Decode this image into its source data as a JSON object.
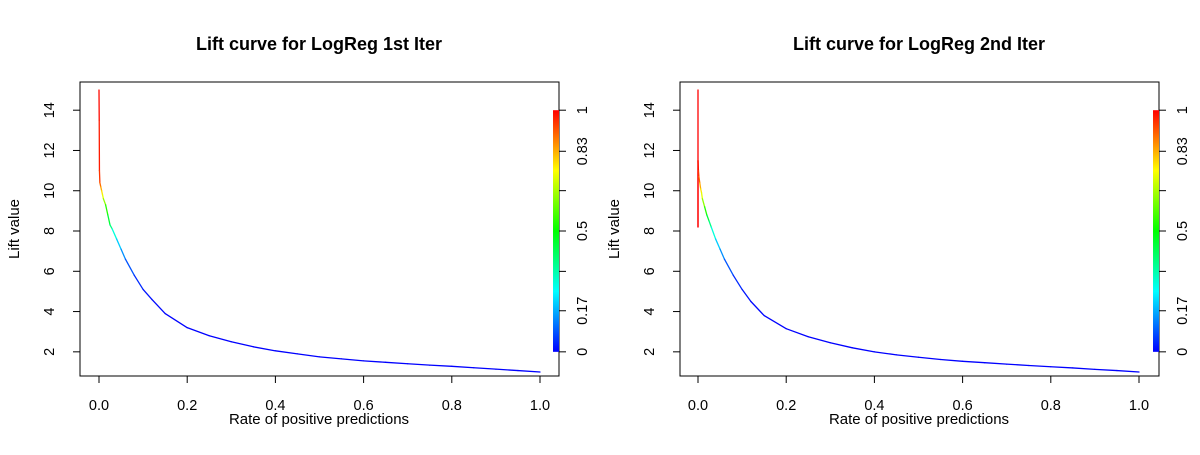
{
  "chart_data": [
    {
      "type": "line",
      "title": "Lift curve for LogReg 1st Iter",
      "xlabel": "Rate of positive predictions",
      "ylabel": "Lift value",
      "xlim": [
        0,
        1
      ],
      "ylim": [
        0.8,
        15.4
      ],
      "xticks": [
        "0.0",
        "0.2",
        "0.4",
        "0.6",
        "0.8",
        "1.0"
      ],
      "yticks": [
        "2",
        "4",
        "6",
        "8",
        "10",
        "12",
        "14"
      ],
      "colorbar_ticks": [
        "0",
        "0.17",
        "0.5",
        "0.83",
        "1"
      ],
      "colorbar_colormap": [
        "#0000ff",
        "#00ffff",
        "#00ff00",
        "#ffff00",
        "#ff0000"
      ],
      "grid": false,
      "series": [
        {
          "x": [
            0.0,
            0.0005,
            0.001,
            0.002,
            0.004,
            0.006,
            0.008,
            0.01,
            0.015,
            0.02,
            0.025,
            0.03,
            0.04,
            0.05,
            0.06,
            0.08,
            0.1,
            0.12,
            0.15,
            0.2,
            0.25,
            0.3,
            0.35,
            0.4,
            0.45,
            0.5,
            0.55,
            0.6,
            0.65,
            0.7,
            0.75,
            0.8,
            0.85,
            0.9,
            0.95,
            1.0
          ],
          "y": [
            15.0,
            13.5,
            11.0,
            10.4,
            10.2,
            10.0,
            9.8,
            9.6,
            9.3,
            8.8,
            8.3,
            8.1,
            7.6,
            7.1,
            6.6,
            5.8,
            5.1,
            4.6,
            3.9,
            3.2,
            2.8,
            2.5,
            2.25,
            2.05,
            1.9,
            1.75,
            1.65,
            1.55,
            1.48,
            1.41,
            1.34,
            1.28,
            1.21,
            1.14,
            1.07,
            1.0
          ]
        }
      ]
    },
    {
      "type": "line",
      "title": "Lift curve for LogReg 2nd Iter",
      "xlabel": "Rate of positive predictions",
      "ylabel": "Lift value",
      "xlim": [
        0,
        1
      ],
      "ylim": [
        0.8,
        15.4
      ],
      "xticks": [
        "0.0",
        "0.2",
        "0.4",
        "0.6",
        "0.8",
        "1.0"
      ],
      "yticks": [
        "2",
        "4",
        "6",
        "8",
        "10",
        "12",
        "14"
      ],
      "colorbar_ticks": [
        "0",
        "0.17",
        "0.5",
        "0.83",
        "1"
      ],
      "colorbar_colormap": [
        "#0000ff",
        "#00ffff",
        "#00ff00",
        "#ffff00",
        "#ff0000"
      ],
      "grid": false,
      "series": [
        {
          "x": [
            0.0,
            0.0,
            0.0,
            0.001,
            0.002,
            0.004,
            0.006,
            0.008,
            0.01,
            0.015,
            0.02,
            0.025,
            0.03,
            0.04,
            0.05,
            0.06,
            0.08,
            0.1,
            0.12,
            0.15,
            0.2,
            0.25,
            0.3,
            0.35,
            0.4,
            0.45,
            0.5,
            0.55,
            0.6,
            0.65,
            0.7,
            0.75,
            0.8,
            0.85,
            0.9,
            0.95,
            1.0
          ],
          "y": [
            15.0,
            8.2,
            11.5,
            11.0,
            10.7,
            10.4,
            10.1,
            9.9,
            9.6,
            9.2,
            8.8,
            8.5,
            8.2,
            7.6,
            7.1,
            6.6,
            5.8,
            5.1,
            4.5,
            3.8,
            3.15,
            2.75,
            2.45,
            2.2,
            2.0,
            1.85,
            1.73,
            1.62,
            1.53,
            1.46,
            1.39,
            1.32,
            1.26,
            1.2,
            1.13,
            1.07,
            1.0
          ]
        }
      ]
    }
  ]
}
